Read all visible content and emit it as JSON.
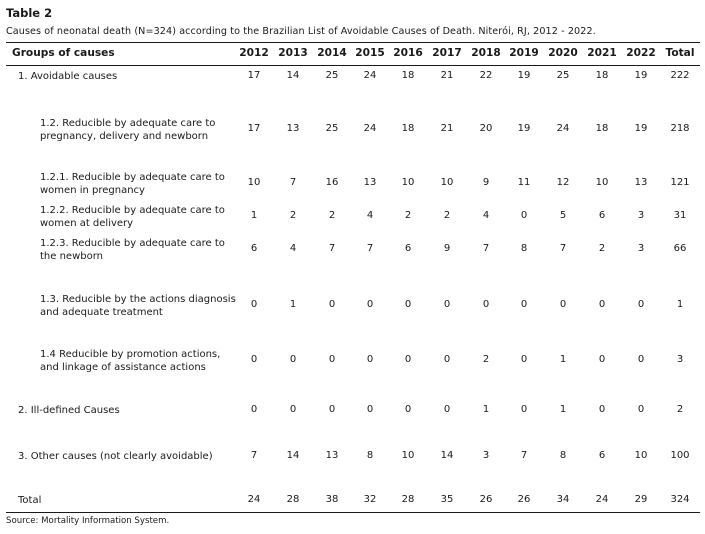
{
  "table_label": "Table 2",
  "caption": "Causes of neonatal death (N=324) according to the Brazilian List of Avoidable Causes of Death. Niterói, RJ, 2012 - 2022.",
  "header": {
    "groups": "Groups of causes",
    "columns": [
      "2012",
      "2013",
      "2014",
      "2015",
      "2016",
      "2017",
      "2018",
      "2019",
      "2020",
      "2021",
      "2022",
      "Total"
    ]
  },
  "rows": [
    {
      "label": [
        "1. Avoidable causes"
      ],
      "values": [
        "17",
        "14",
        "25",
        "24",
        "18",
        "21",
        "22",
        "19",
        "25",
        "18",
        "19",
        "222"
      ]
    },
    {
      "label": [
        "1.2. Reducible by adequate care to",
        "pregnancy, delivery and newborn"
      ],
      "values": [
        "17",
        "13",
        "25",
        "24",
        "18",
        "21",
        "20",
        "19",
        "24",
        "18",
        "19",
        "218"
      ]
    },
    {
      "label": [
        "1.2.1. Reducible by adequate care to",
        "women in pregnancy"
      ],
      "values": [
        "10",
        "7",
        "16",
        "13",
        "10",
        "10",
        "9",
        "11",
        "12",
        "10",
        "13",
        "121"
      ]
    },
    {
      "label": [
        "1.2.2. Reducible by adequate care to",
        "women at delivery"
      ],
      "values": [
        "1",
        "2",
        "2",
        "4",
        "2",
        "2",
        "4",
        "0",
        "5",
        "6",
        "3",
        "31"
      ]
    },
    {
      "label": [
        "1.2.3. Reducible by adequate care to",
        "the newborn"
      ],
      "values": [
        "6",
        "4",
        "7",
        "7",
        "6",
        "9",
        "7",
        "8",
        "7",
        "2",
        "3",
        "66"
      ]
    },
    {
      "label": [
        "1.3. Reducible by the actions diagnosis",
        "and adequate treatment"
      ],
      "values": [
        "0",
        "1",
        "0",
        "0",
        "0",
        "0",
        "0",
        "0",
        "0",
        "0",
        "0",
        "1"
      ]
    },
    {
      "label": [
        "1.4 Reducible by promotion actions,",
        "and linkage of assistance actions"
      ],
      "values": [
        "0",
        "0",
        "0",
        "0",
        "0",
        "0",
        "2",
        "0",
        "1",
        "0",
        "0",
        "3"
      ]
    },
    {
      "label": [
        "2. Ill-defined Causes"
      ],
      "values": [
        "0",
        "0",
        "0",
        "0",
        "0",
        "0",
        "1",
        "0",
        "1",
        "0",
        "0",
        "2"
      ]
    },
    {
      "label": [
        "3. Other causes (not clearly avoidable)"
      ],
      "values": [
        "7",
        "14",
        "13",
        "8",
        "10",
        "14",
        "3",
        "7",
        "8",
        "6",
        "10",
        "100"
      ]
    },
    {
      "label": [
        "Total"
      ],
      "values": [
        "24",
        "28",
        "38",
        "32",
        "28",
        "35",
        "26",
        "26",
        "34",
        "24",
        "29",
        "324"
      ]
    }
  ],
  "source": "Source: Mortality Information System."
}
